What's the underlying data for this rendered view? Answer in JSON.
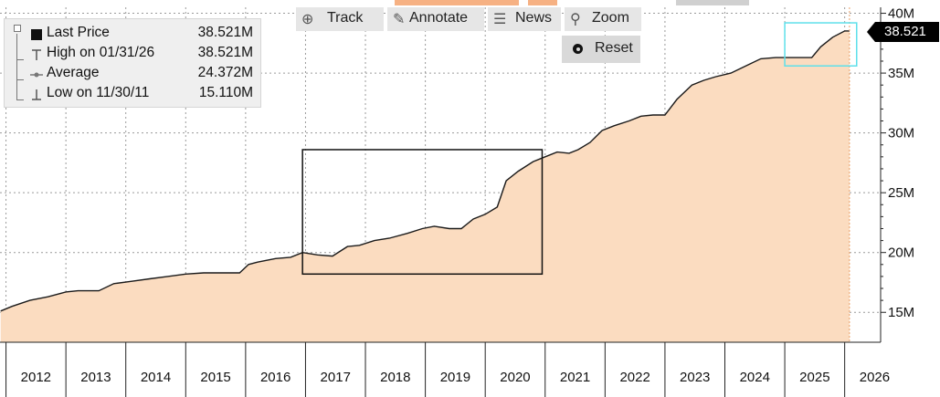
{
  "legend": {
    "items": [
      {
        "label": "Last Price",
        "value": "38.521M"
      },
      {
        "label": "High on 01/31/26",
        "value": "38.521M"
      },
      {
        "label": "Average",
        "value": "24.372M"
      },
      {
        "label": "Low on 11/30/11",
        "value": "15.110M"
      }
    ]
  },
  "toolbar": {
    "track_label": "Track",
    "annotate_label": "Annotate",
    "news_label": "News",
    "zoom_label": "Zoom",
    "reset_label": "Reset"
  },
  "last_price_badge": "38.521",
  "colors": {
    "area_fill": "#fbdcc0",
    "line": "#1a1a1a",
    "grid": "#9a9a9a",
    "annotation_box": "#111111",
    "highlight_box": "#5ee0ea",
    "toolbar_accent": "#f6b183"
  },
  "chart_data": {
    "type": "area",
    "title": "",
    "xlabel": "",
    "ylabel": "",
    "x_tick_labels": [
      "2012",
      "2013",
      "2014",
      "2015",
      "2016",
      "2017",
      "2018",
      "2019",
      "2020",
      "2021",
      "2022",
      "2023",
      "2024",
      "2025",
      "2026"
    ],
    "y_tick_labels": [
      "15M",
      "20M",
      "25M",
      "30M",
      "35M",
      "40M"
    ],
    "y_tick_values": [
      15,
      20,
      25,
      30,
      35,
      40
    ],
    "ylim": [
      12.5,
      40.5
    ],
    "xlim": [
      2011.9,
      2026.6
    ],
    "grid": true,
    "series": [
      {
        "name": "Last Price",
        "x": [
          2011.91,
          2012.1,
          2012.4,
          2012.7,
          2013.0,
          2013.2,
          2013.55,
          2013.8,
          2014.1,
          2014.4,
          2014.7,
          2015.0,
          2015.3,
          2015.6,
          2015.9,
          2016.05,
          2016.2,
          2016.5,
          2016.75,
          2016.95,
          2017.2,
          2017.45,
          2017.7,
          2017.9,
          2018.15,
          2018.4,
          2018.7,
          2018.95,
          2019.15,
          2019.4,
          2019.6,
          2019.8,
          2020.0,
          2020.2,
          2020.35,
          2020.55,
          2020.8,
          2021.0,
          2021.2,
          2021.4,
          2021.55,
          2021.75,
          2021.95,
          2022.15,
          2022.4,
          2022.6,
          2022.8,
          2023.0,
          2023.2,
          2023.45,
          2023.65,
          2023.85,
          2024.1,
          2024.35,
          2024.6,
          2024.85,
          2025.0,
          2025.25,
          2025.45,
          2025.6,
          2025.8,
          2026.0,
          2026.08
        ],
        "values": [
          15.11,
          15.5,
          16.0,
          16.3,
          16.7,
          16.8,
          16.8,
          17.4,
          17.6,
          17.8,
          18.0,
          18.2,
          18.3,
          18.3,
          18.3,
          19.0,
          19.2,
          19.5,
          19.6,
          20.0,
          19.8,
          19.7,
          20.5,
          20.6,
          21.0,
          21.2,
          21.6,
          22.0,
          22.2,
          22.0,
          22.0,
          22.8,
          23.2,
          23.8,
          26.0,
          26.8,
          27.6,
          28.0,
          28.4,
          28.3,
          28.6,
          29.2,
          30.2,
          30.6,
          31.0,
          31.4,
          31.5,
          31.5,
          32.8,
          34.0,
          34.4,
          34.7,
          35.0,
          35.6,
          36.2,
          36.3,
          36.3,
          36.3,
          36.3,
          37.2,
          38.0,
          38.521,
          38.521
        ]
      }
    ],
    "annotation_boxes": [
      {
        "kind": "selection",
        "x_range": [
          2016.95,
          2020.95
        ],
        "y_range": [
          18.2,
          28.6
        ]
      },
      {
        "kind": "highlight",
        "x_range": [
          2025.0,
          2026.2
        ],
        "y_range": [
          35.6,
          39.2
        ]
      }
    ],
    "reference_line": {
      "x": 2026.08
    }
  }
}
